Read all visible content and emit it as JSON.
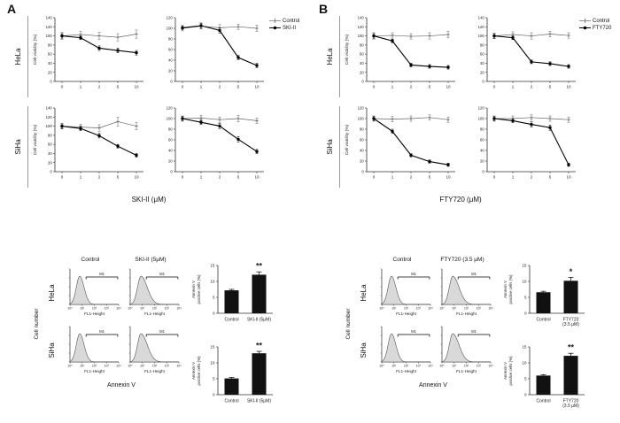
{
  "colors": {
    "treatment_line": "#000000",
    "control_line": "#666666",
    "bar_fill": "#111111",
    "hist_fill": "#d9d9d9"
  },
  "panelA": {
    "label": "A",
    "xlabel": "SKI-II (μM)",
    "legend": [
      "Control",
      "SKI-II"
    ],
    "cell_lines": [
      "HeLa",
      "SiHa"
    ],
    "flow": {
      "ylabel": "Cell number",
      "xlabel": "Annexin V",
      "gate": "M1",
      "col_headers": [
        "Control",
        "SKI-II (5μM)"
      ],
      "row_labels": [
        "HeLa",
        "SiHa"
      ]
    }
  },
  "panelB": {
    "label": "B",
    "xlabel": "FTY720 (μM)",
    "legend": [
      "Control",
      "FTY720"
    ],
    "cell_lines": [
      "HeLa",
      "SiHa"
    ],
    "flow": {
      "ylabel": "Cell number",
      "xlabel": "Annexin V",
      "gate": "M1",
      "col_headers": [
        "Control",
        "FTY720 (3.5 μM)"
      ],
      "row_labels": [
        "HeLa",
        "SiHa"
      ]
    }
  },
  "chart_data": [
    {
      "id": "a_hela_1",
      "type": "line",
      "panel": "A",
      "cell_line": "HeLa",
      "ylabel": "Cell viability (%)",
      "x": [
        0,
        1,
        2,
        5,
        10
      ],
      "ylim": [
        0,
        140
      ],
      "yticks": [
        0,
        20,
        40,
        60,
        80,
        100,
        120,
        140
      ],
      "series": [
        {
          "name": "Control",
          "values": [
            100,
            103,
            100,
            97,
            104
          ],
          "errors": [
            8,
            7,
            8,
            8,
            9
          ]
        },
        {
          "name": "SKI-II",
          "values": [
            100,
            96,
            73,
            68,
            63
          ],
          "errors": [
            5,
            4,
            5,
            5,
            5
          ]
        }
      ]
    },
    {
      "id": "a_hela_2",
      "type": "line",
      "panel": "A",
      "cell_line": "HeLa",
      "ylabel": "",
      "x": [
        0,
        1,
        2,
        5,
        10
      ],
      "ylim": [
        0,
        120
      ],
      "yticks": [
        0,
        20,
        40,
        60,
        80,
        100,
        120
      ],
      "series": [
        {
          "name": "Control",
          "values": [
            100,
            104,
            101,
            103,
            100
          ],
          "errors": [
            5,
            5,
            6,
            5,
            6
          ]
        },
        {
          "name": "SKI-II",
          "values": [
            101,
            105,
            96,
            45,
            30
          ],
          "errors": [
            4,
            5,
            5,
            4,
            4
          ]
        }
      ]
    },
    {
      "id": "a_siha_1",
      "type": "line",
      "panel": "A",
      "cell_line": "SiHa",
      "ylabel": "Cell viability (%)",
      "x": [
        0,
        1,
        2,
        5,
        10
      ],
      "ylim": [
        0,
        140
      ],
      "yticks": [
        0,
        20,
        40,
        60,
        80,
        100,
        120,
        140
      ],
      "series": [
        {
          "name": "Control",
          "values": [
            100,
            98,
            96,
            110,
            100
          ],
          "errors": [
            6,
            6,
            7,
            10,
            8
          ]
        },
        {
          "name": "SKI-II",
          "values": [
            100,
            95,
            79,
            56,
            36
          ],
          "errors": [
            5,
            5,
            5,
            4,
            4
          ]
        }
      ]
    },
    {
      "id": "a_siha_2",
      "type": "line",
      "panel": "A",
      "cell_line": "SiHa",
      "ylabel": "",
      "x": [
        0,
        1,
        2,
        5,
        10
      ],
      "ylim": [
        0,
        120
      ],
      "yticks": [
        0,
        20,
        40,
        60,
        80,
        100,
        120
      ],
      "series": [
        {
          "name": "Control",
          "values": [
            100,
            101,
            98,
            100,
            96
          ],
          "errors": [
            5,
            5,
            5,
            6,
            5
          ]
        },
        {
          "name": "SKI-II",
          "values": [
            100,
            93,
            86,
            61,
            38
          ],
          "errors": [
            4,
            4,
            5,
            5,
            4
          ]
        }
      ]
    },
    {
      "id": "b_hela_1",
      "type": "line",
      "panel": "B",
      "cell_line": "HeLa",
      "ylabel": "Cell viability (%)",
      "x": [
        0,
        1,
        2,
        5,
        10
      ],
      "ylim": [
        0,
        140
      ],
      "yticks": [
        0,
        20,
        40,
        60,
        80,
        100,
        120,
        140
      ],
      "series": [
        {
          "name": "Control",
          "values": [
            100,
            101,
            99,
            100,
            103
          ],
          "errors": [
            7,
            6,
            6,
            7,
            7
          ]
        },
        {
          "name": "FTY720",
          "values": [
            100,
            89,
            36,
            33,
            31
          ],
          "errors": [
            5,
            4,
            4,
            4,
            4
          ]
        }
      ]
    },
    {
      "id": "b_hela_2",
      "type": "line",
      "panel": "B",
      "cell_line": "HeLa",
      "ylabel": "",
      "x": [
        0,
        1,
        2,
        5,
        10
      ],
      "ylim": [
        0,
        140
      ],
      "yticks": [
        0,
        20,
        40,
        60,
        80,
        100,
        120,
        140
      ],
      "series": [
        {
          "name": "Control",
          "values": [
            100,
            103,
            100,
            104,
            101
          ],
          "errors": [
            6,
            6,
            7,
            6,
            6
          ]
        },
        {
          "name": "FTY720",
          "values": [
            100,
            96,
            43,
            39,
            33
          ],
          "errors": [
            5,
            4,
            4,
            4,
            4
          ]
        }
      ]
    },
    {
      "id": "b_siha_1",
      "type": "line",
      "panel": "B",
      "cell_line": "SiHa",
      "ylabel": "Cell viability (%)",
      "x": [
        0,
        1,
        2,
        5,
        10
      ],
      "ylim": [
        0,
        120
      ],
      "yticks": [
        0,
        20,
        40,
        60,
        80,
        100,
        120
      ],
      "series": [
        {
          "name": "Control",
          "values": [
            100,
            99,
            100,
            102,
            98
          ],
          "errors": [
            5,
            5,
            5,
            5,
            5
          ]
        },
        {
          "name": "FTY720",
          "values": [
            100,
            76,
            31,
            19,
            13
          ],
          "errors": [
            4,
            4,
            3,
            3,
            3
          ]
        }
      ]
    },
    {
      "id": "b_siha_2",
      "type": "line",
      "panel": "B",
      "cell_line": "SiHa",
      "ylabel": "",
      "x": [
        0,
        1,
        2,
        5,
        10
      ],
      "ylim": [
        0,
        120
      ],
      "yticks": [
        0,
        20,
        40,
        60,
        80,
        100,
        120
      ],
      "series": [
        {
          "name": "Control",
          "values": [
            100,
            100,
            102,
            100,
            98
          ],
          "errors": [
            5,
            5,
            5,
            5,
            5
          ]
        },
        {
          "name": "FTY720",
          "values": [
            100,
            96,
            89,
            83,
            13
          ],
          "errors": [
            4,
            4,
            5,
            5,
            3
          ]
        }
      ]
    },
    {
      "id": "a_hela_ctrl",
      "type": "histogram",
      "panel": "A",
      "cell_line": "HeLa",
      "condition": "Control",
      "xlabel": "FL1-Height",
      "xticks": [
        "10⁰",
        "10¹",
        "10²",
        "10³",
        "10⁴"
      ],
      "gate": "M1",
      "peak": 0.2,
      "wl": 0.07,
      "wr": 0.09
    },
    {
      "id": "a_hela_trt",
      "type": "histogram",
      "panel": "A",
      "cell_line": "HeLa",
      "condition": "SKI-II (5μM)",
      "xlabel": "FL1-Height",
      "xticks": [
        "10⁰",
        "10¹",
        "10²",
        "10³",
        "10⁴"
      ],
      "gate": "M1",
      "peak": 0.22,
      "wl": 0.07,
      "wr": 0.13
    },
    {
      "id": "a_siha_ctrl",
      "type": "histogram",
      "panel": "A",
      "cell_line": "SiHa",
      "condition": "Control",
      "xlabel": "FL1-Height",
      "xticks": [
        "10⁰",
        "10¹",
        "10²",
        "10³",
        "10⁴"
      ],
      "gate": "M1",
      "peak": 0.2,
      "wl": 0.07,
      "wr": 0.09
    },
    {
      "id": "a_siha_trt",
      "type": "histogram",
      "panel": "A",
      "cell_line": "SiHa",
      "condition": "SKI-II (5μM)",
      "xlabel": "FL1-Height",
      "xticks": [
        "10⁰",
        "10¹",
        "10²",
        "10³",
        "10⁴"
      ],
      "gate": "M1",
      "peak": 0.22,
      "wl": 0.07,
      "wr": 0.13
    },
    {
      "id": "b_hela_ctrl",
      "type": "histogram",
      "panel": "B",
      "cell_line": "HeLa",
      "condition": "Control",
      "xlabel": "FL1-Height",
      "xticks": [
        "10⁰",
        "10¹",
        "10²",
        "10³",
        "10⁴"
      ],
      "gate": "M1",
      "peak": 0.2,
      "wl": 0.07,
      "wr": 0.09
    },
    {
      "id": "b_hela_trt",
      "type": "histogram",
      "panel": "B",
      "cell_line": "HeLa",
      "condition": "FTY720 (3.5 μM)",
      "xlabel": "FL1-Height",
      "xticks": [
        "10⁰",
        "10¹",
        "10²",
        "10³",
        "10⁴"
      ],
      "gate": "M1",
      "peak": 0.22,
      "wl": 0.07,
      "wr": 0.13
    },
    {
      "id": "b_siha_ctrl",
      "type": "histogram",
      "panel": "B",
      "cell_line": "SiHa",
      "condition": "Control",
      "xlabel": "FL1-Height",
      "xticks": [
        "10⁰",
        "10¹",
        "10²",
        "10³",
        "10⁴"
      ],
      "gate": "M1",
      "peak": 0.2,
      "wl": 0.07,
      "wr": 0.09
    },
    {
      "id": "b_siha_trt",
      "type": "histogram",
      "panel": "B",
      "cell_line": "SiHa",
      "condition": "FTY720 (3.5 μM)",
      "xlabel": "FL1-Height",
      "xticks": [
        "10⁰",
        "10¹",
        "10²",
        "10³",
        "10⁴"
      ],
      "gate": "M1",
      "peak": 0.22,
      "wl": 0.07,
      "wr": 0.13
    },
    {
      "id": "a_hela_bar",
      "type": "bar",
      "panel": "A",
      "cell_line": "HeLa",
      "ylabel_lines": [
        "Annexin V",
        "positive cells (%)"
      ],
      "ylim": [
        0,
        15
      ],
      "yticks": [
        0,
        5,
        10,
        15
      ],
      "categories": [
        [
          "Control"
        ],
        [
          "SKI-II (5μM)"
        ]
      ],
      "values": [
        7.2,
        12.1
      ],
      "errors": [
        0.3,
        0.9
      ],
      "significance": "**",
      "sig_index": 1
    },
    {
      "id": "a_siha_bar",
      "type": "bar",
      "panel": "A",
      "cell_line": "SiHa",
      "ylabel_lines": [
        "Annexin V",
        "positive cells (%)"
      ],
      "ylim": [
        0,
        15
      ],
      "yticks": [
        0,
        5,
        10,
        15
      ],
      "categories": [
        [
          "Control"
        ],
        [
          "SKI-II (5μM)"
        ]
      ],
      "values": [
        5.1,
        13.0
      ],
      "errors": [
        0.3,
        0.6
      ],
      "significance": "**",
      "sig_index": 1
    },
    {
      "id": "b_hela_bar",
      "type": "bar",
      "panel": "B",
      "cell_line": "HeLa",
      "ylabel_lines": [
        "Annexin V",
        "positive cells (%)"
      ],
      "ylim": [
        0,
        15
      ],
      "yticks": [
        0,
        5,
        10,
        15
      ],
      "categories": [
        [
          "Control"
        ],
        [
          "FTY720",
          "(3.5 μM)"
        ]
      ],
      "values": [
        6.6,
        10.2
      ],
      "errors": [
        0.3,
        1.1
      ],
      "significance": "*",
      "sig_index": 1
    },
    {
      "id": "b_siha_bar",
      "type": "bar",
      "panel": "B",
      "cell_line": "SiHa",
      "ylabel_lines": [
        "Annexin V",
        "positive cells (%)"
      ],
      "ylim": [
        0,
        15
      ],
      "yticks": [
        0,
        5,
        10,
        15
      ],
      "categories": [
        [
          "Control"
        ],
        [
          "FTY720",
          "(3.5 μM)"
        ]
      ],
      "values": [
        6.0,
        12.2
      ],
      "errors": [
        0.3,
        0.8
      ],
      "significance": "**",
      "sig_index": 1
    }
  ]
}
